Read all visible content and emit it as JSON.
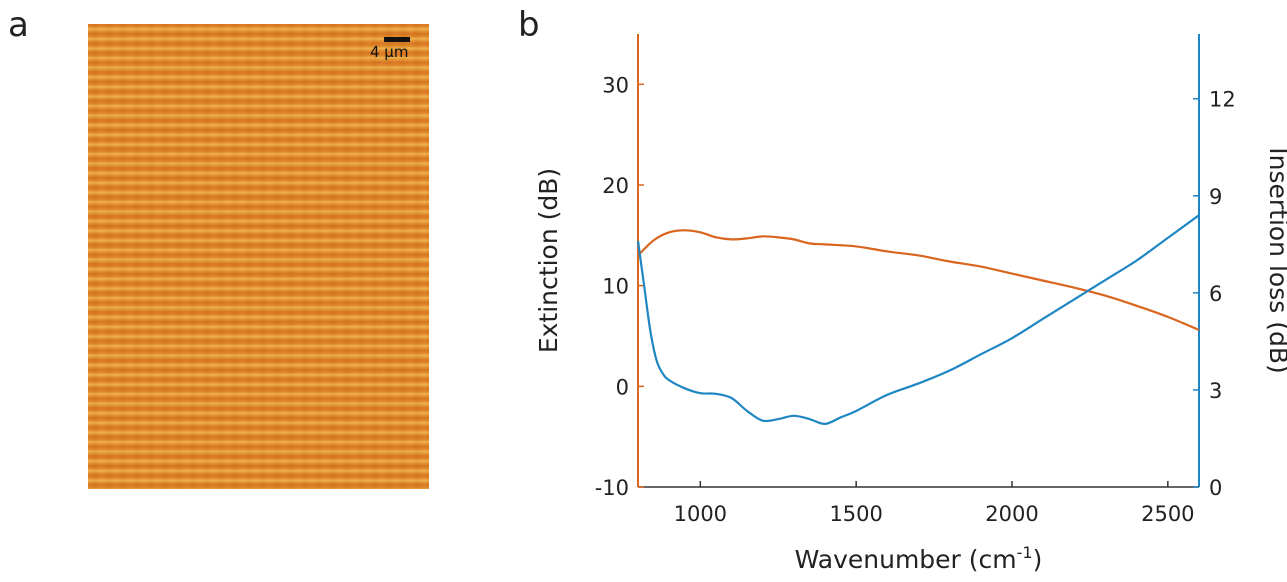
{
  "panels": {
    "a": {
      "label": "a",
      "scale_bar": "4 μm"
    },
    "b": {
      "label": "b"
    }
  },
  "chart_data": {
    "type": "line",
    "xlabel": "Wavenumber (cm",
    "xlabel_sup": "-1",
    "xlabel_end": ")",
    "ylabel_left": "Extinction (dB)",
    "ylabel_right": "Insertion loss (dB)",
    "xlim": [
      800,
      2600
    ],
    "ylim_left": [
      -10,
      35
    ],
    "ylim_right": [
      0,
      14
    ],
    "x_ticks": [
      1000,
      1500,
      2000,
      2500
    ],
    "y_ticks_left": [
      -10,
      0,
      10,
      20,
      30
    ],
    "y_ticks_right": [
      0,
      3,
      6,
      9,
      12
    ],
    "grid": false,
    "colors": {
      "extinction": "#d9651e",
      "insertion_loss": "#1f86c4"
    },
    "series": [
      {
        "axis": "left",
        "x": [
          800,
          850,
          900,
          950,
          1000,
          1050,
          1100,
          1150,
          1200,
          1250,
          1300,
          1350,
          1400,
          1500,
          1600,
          1700,
          1800,
          1900,
          2000,
          2100,
          2200,
          2300,
          2400,
          2500,
          2600
        ],
        "y": [
          13.0,
          14.5,
          15.3,
          15.5,
          15.3,
          14.8,
          14.6,
          14.7,
          14.9,
          14.8,
          14.6,
          14.2,
          14.1,
          13.9,
          13.4,
          13.0,
          12.4,
          11.9,
          11.2,
          10.5,
          9.8,
          9.0,
          8.0,
          6.9,
          5.6
        ]
      },
      {
        "axis": "right",
        "x": [
          800,
          820,
          840,
          860,
          880,
          900,
          950,
          1000,
          1050,
          1100,
          1150,
          1200,
          1250,
          1300,
          1350,
          1400,
          1450,
          1500,
          1600,
          1700,
          1800,
          1900,
          2000,
          2100,
          2200,
          2300,
          2400,
          2500,
          2600
        ],
        "y": [
          7.6,
          6.2,
          4.8,
          3.9,
          3.5,
          3.3,
          3.05,
          2.9,
          2.88,
          2.75,
          2.35,
          2.05,
          2.1,
          2.2,
          2.1,
          1.95,
          2.15,
          2.35,
          2.85,
          3.2,
          3.6,
          4.1,
          4.6,
          5.2,
          5.8,
          6.4,
          7.0,
          7.7,
          8.4
        ]
      }
    ]
  }
}
